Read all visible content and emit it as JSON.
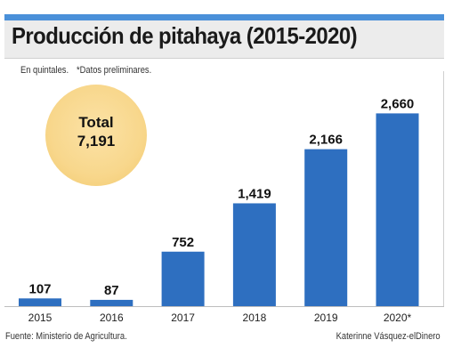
{
  "header": {
    "title": "Producción de pitahaya (2015-2020)",
    "unit_note": "En quintales.",
    "prelim_note": "*Datos preliminares."
  },
  "total": {
    "label": "Total",
    "value": "7,191"
  },
  "footer": {
    "source": "Fuente: Ministerio de Agricultura.",
    "credit": "Katerinne Vásquez-elDinero"
  },
  "colors": {
    "bar": "#2e6fc0",
    "accent": "#4a90d9",
    "circle": "#f8d78c"
  },
  "chart_data": {
    "type": "bar",
    "title": "Producción de pitahaya (2015-2020)",
    "xlabel": "",
    "ylabel": "",
    "categories": [
      "2015",
      "2016",
      "2017",
      "2018",
      "2019",
      "2020*"
    ],
    "values": [
      107,
      87,
      752,
      1419,
      2166,
      2660
    ],
    "value_labels": [
      "107",
      "87",
      "752",
      "1,419",
      "2,166",
      "2,660"
    ],
    "ylim": [
      0,
      2800
    ],
    "grid": false,
    "legend": "none"
  }
}
